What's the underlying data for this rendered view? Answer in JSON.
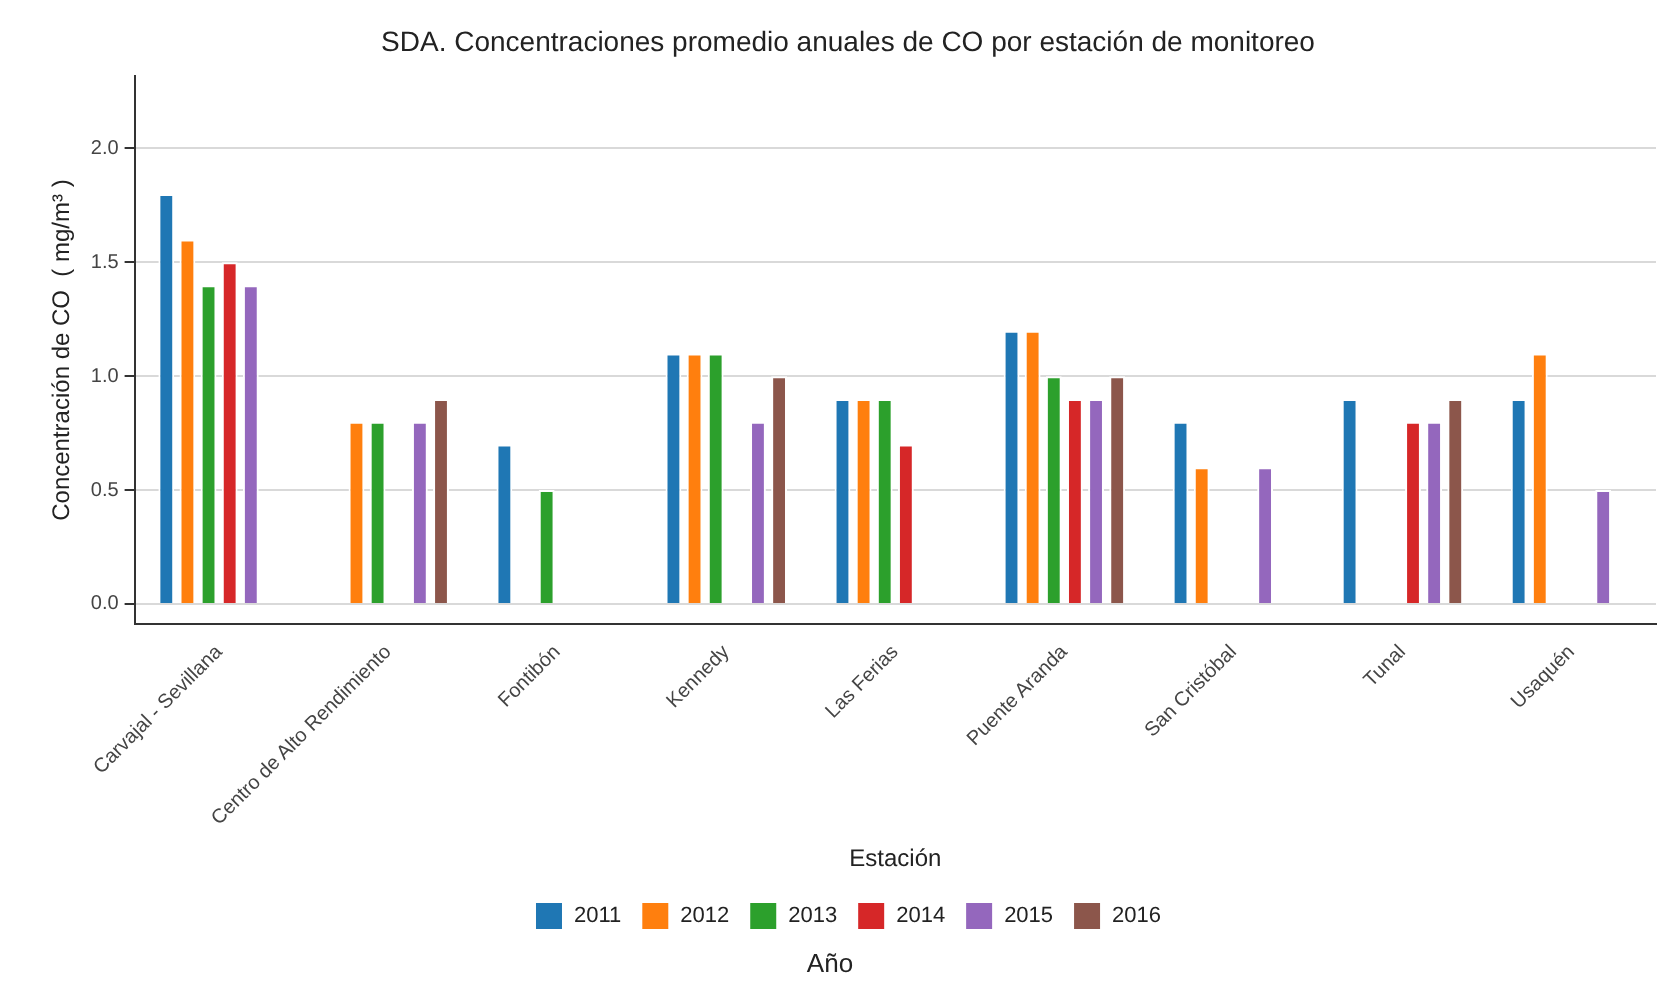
{
  "chart_data": {
    "type": "bar",
    "title": "SDA. Concentraciones promedio anuales de CO por estación de monitoreo",
    "xlabel": "Estación",
    "ylabel": "Concentración de CO  ( mg/m³ )",
    "legend_title": "Año",
    "legend": "bottom",
    "grid": "y",
    "categories": [
      "Carvajal - Sevillana",
      "Centro de Alto Rendimiento",
      "Fontibón",
      "Kennedy",
      "Las Ferias",
      "Puente Aranda",
      "San Cristóbal",
      "Tunal",
      "Usaquén"
    ],
    "ylim": [
      -0.09,
      2.32
    ],
    "yticks": [
      {
        "value": 0,
        "label": "0.0"
      },
      {
        "value": 0.5,
        "label": "0.5"
      },
      {
        "value": 1,
        "label": "1.0"
      },
      {
        "value": 1.5,
        "label": "1.5"
      },
      {
        "value": 2,
        "label": "2.0"
      }
    ],
    "series": [
      {
        "name": "2011",
        "color": "#1f77b4",
        "values": [
          1.8,
          null,
          0.7,
          1.1,
          0.9,
          1.2,
          0.8,
          0.9,
          0.9
        ]
      },
      {
        "name": "2012",
        "color": "#ff7f0e",
        "values": [
          1.6,
          0.8,
          null,
          1.1,
          0.9,
          1.2,
          0.6,
          null,
          1.1
        ]
      },
      {
        "name": "2013",
        "color": "#2ca02c",
        "values": [
          1.4,
          0.8,
          0.5,
          1.1,
          0.9,
          1.0,
          null,
          null,
          null
        ]
      },
      {
        "name": "2014",
        "color": "#d62728",
        "values": [
          1.5,
          null,
          null,
          null,
          0.7,
          0.9,
          null,
          0.8,
          null
        ]
      },
      {
        "name": "2015",
        "color": "#9467bd",
        "values": [
          1.4,
          0.8,
          null,
          0.8,
          null,
          0.9,
          0.6,
          0.8,
          0.5
        ]
      },
      {
        "name": "2016",
        "color": "#8c564b",
        "values": [
          null,
          0.9,
          null,
          1.0,
          null,
          1.0,
          null,
          0.9,
          null
        ]
      }
    ]
  }
}
